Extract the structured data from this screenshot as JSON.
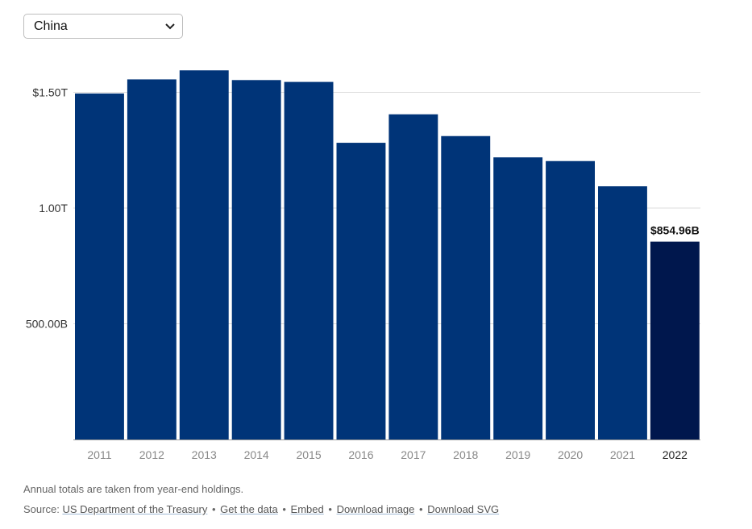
{
  "selector": {
    "value": "China",
    "icon": "chevron-down-icon"
  },
  "colors": {
    "bar": "#003478",
    "highlight": "#00174d",
    "grid": "#dddddd",
    "axis": "#999999"
  },
  "chart_data": {
    "type": "bar",
    "categories": [
      "2011",
      "2012",
      "2013",
      "2014",
      "2015",
      "2016",
      "2017",
      "2018",
      "2019",
      "2020",
      "2021",
      "2022"
    ],
    "values": [
      1.495,
      1.556,
      1.595,
      1.553,
      1.545,
      1.282,
      1.405,
      1.311,
      1.219,
      1.203,
      1.094,
      0.85496
    ],
    "unit": "trillions USD",
    "ylim": [
      0,
      1.5
    ],
    "yticks": [
      {
        "value": 0.5,
        "label": "500.00B"
      },
      {
        "value": 1.0,
        "label": "1.00T"
      },
      {
        "value": 1.5,
        "label": "$1.50T"
      }
    ],
    "highlight_index": 11,
    "highlight_label": "$854.96B",
    "grid": true
  },
  "footnote": "Annual totals are taken from year-end holdings.",
  "source": {
    "prefix": "Source:",
    "links": [
      "US Department of the Treasury",
      "Get the data",
      "Embed",
      "Download image",
      "Download SVG"
    ],
    "separator": "•"
  }
}
